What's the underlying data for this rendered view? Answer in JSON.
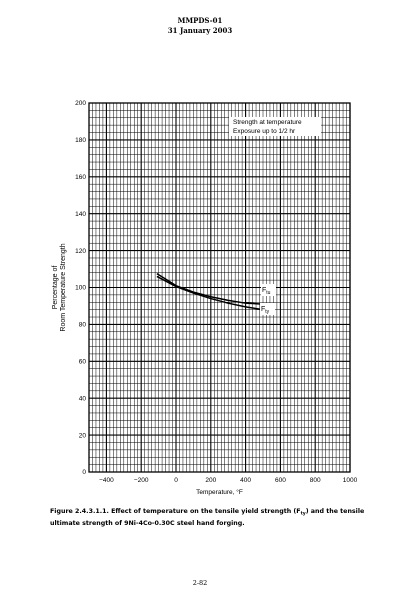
{
  "header": {
    "doc_id": "MMPDS-01",
    "date": "31 January 2003"
  },
  "chart_data": {
    "type": "line",
    "xlabel": "Temperature, °F",
    "ylabel": [
      "Percentage of",
      "Room Temperature Strength"
    ],
    "xlim": [
      -500,
      1000
    ],
    "ylim": [
      0,
      200
    ],
    "xticks": [
      -400,
      -200,
      0,
      200,
      400,
      600,
      800,
      1000
    ],
    "xtick_labels": [
      "−400",
      "−200",
      "0",
      "200",
      "400",
      "600",
      "800",
      "1000"
    ],
    "yticks": [
      0,
      20,
      40,
      60,
      80,
      100,
      120,
      140,
      160,
      180,
      200
    ],
    "grid": true,
    "note": [
      "Strength at temperature",
      "Exposure up to 1/2 hr"
    ],
    "series": [
      {
        "name": "Ftu",
        "label_main": "F",
        "label_sub": "tu",
        "x": [
          -110,
          -50,
          0,
          100,
          200,
          300,
          400,
          500
        ],
        "y": [
          107.5,
          104,
          101,
          97.5,
          95,
          93,
          91.5,
          91
        ]
      },
      {
        "name": "Fty",
        "label_main": "F",
        "label_sub": "ty",
        "x": [
          -110,
          -50,
          0,
          100,
          200,
          300,
          400,
          500
        ],
        "y": [
          106,
          103,
          100.5,
          97,
          94,
          91.5,
          89.5,
          88
        ]
      }
    ]
  },
  "caption": {
    "part1": "Figure 2.4.3.1.1.  Effect of temperature on the tensile yield strength (F",
    "sub": "ty",
    "part2": ") and the tensile ultimate strength of 9Ni-4Co-0.30C steel hand forging."
  },
  "page_number": "2-82"
}
